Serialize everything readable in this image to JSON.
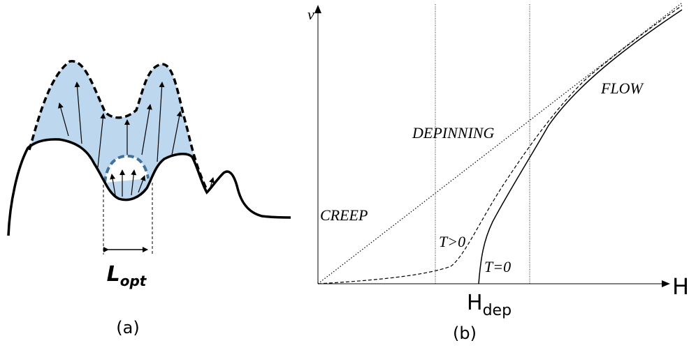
{
  "panel_a": {
    "label": "(a)",
    "length_symbol": "L",
    "length_subscript": "opt"
  },
  "panel_b": {
    "label": "(b)",
    "y_axis_label": "v",
    "x_axis_label": "H",
    "threshold_symbol": "H",
    "threshold_subscript": "dep",
    "regions": [
      "CREEP",
      "DEPINNING",
      "FLOW"
    ],
    "curve_labels": [
      "T>0",
      "T=0"
    ]
  }
}
